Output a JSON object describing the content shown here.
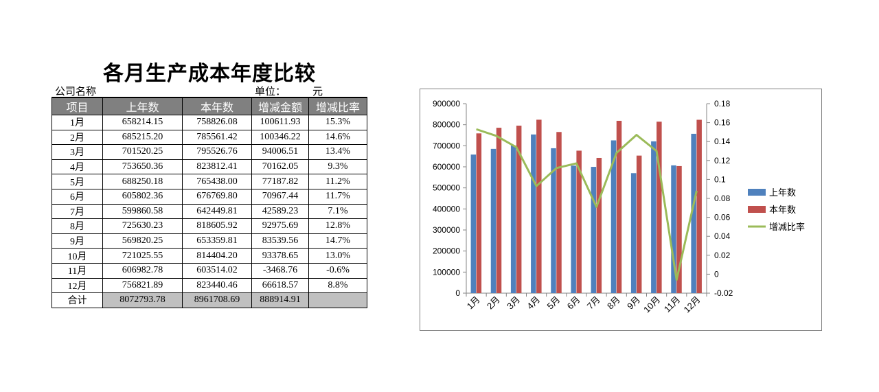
{
  "title": "各月生产成本年度比较",
  "meta": {
    "company_label": "公司名称",
    "unit_label": "单位：",
    "unit_value": "元"
  },
  "table": {
    "headers": [
      "项目",
      "上年数",
      "本年数",
      "增减金额",
      "增减比率"
    ],
    "rows": [
      [
        "1月",
        "658214.15",
        "758826.08",
        "100611.93",
        "15.3%"
      ],
      [
        "2月",
        "685215.20",
        "785561.42",
        "100346.22",
        "14.6%"
      ],
      [
        "3月",
        "701520.25",
        "795526.76",
        "94006.51",
        "13.4%"
      ],
      [
        "4月",
        "753650.36",
        "823812.41",
        "70162.05",
        "9.3%"
      ],
      [
        "5月",
        "688250.18",
        "765438.00",
        "77187.82",
        "11.2%"
      ],
      [
        "6月",
        "605802.36",
        "676769.80",
        "70967.44",
        "11.7%"
      ],
      [
        "7月",
        "599860.58",
        "642449.81",
        "42589.23",
        "7.1%"
      ],
      [
        "8月",
        "725630.23",
        "818605.92",
        "92975.69",
        "12.8%"
      ],
      [
        "9月",
        "569820.25",
        "653359.81",
        "83539.56",
        "14.7%"
      ],
      [
        "10月",
        "721025.55",
        "814404.20",
        "93378.65",
        "13.0%"
      ],
      [
        "11月",
        "606982.78",
        "603514.02",
        "-3468.76",
        "-0.6%"
      ],
      [
        "12月",
        "756821.89",
        "823440.46",
        "66618.57",
        "8.8%"
      ]
    ],
    "total": [
      "合计",
      "8072793.78",
      "8961708.69",
      "888914.91",
      ""
    ]
  },
  "chart_data": {
    "type": "bar",
    "categories": [
      "1月",
      "2月",
      "3月",
      "4月",
      "5月",
      "6月",
      "7月",
      "8月",
      "9月",
      "10月",
      "11月",
      "12月"
    ],
    "series": [
      {
        "name": "上年数",
        "kind": "bar",
        "axis": "left",
        "color": "#4f81bd",
        "values": [
          658214.15,
          685215.2,
          701520.25,
          753650.36,
          688250.18,
          605802.36,
          599860.58,
          725630.23,
          569820.25,
          721025.55,
          606982.78,
          756821.89
        ]
      },
      {
        "name": "本年数",
        "kind": "bar",
        "axis": "left",
        "color": "#c0504d",
        "values": [
          758826.08,
          785561.42,
          795526.76,
          823812.41,
          765438.0,
          676769.8,
          642449.81,
          818605.92,
          653359.81,
          814404.2,
          603514.02,
          823440.46
        ]
      },
      {
        "name": "增减比率",
        "kind": "line",
        "axis": "right",
        "color": "#9bbb59",
        "values": [
          0.153,
          0.146,
          0.134,
          0.093,
          0.112,
          0.117,
          0.071,
          0.128,
          0.147,
          0.13,
          -0.006,
          0.088
        ]
      }
    ],
    "ylim_left": [
      0,
      900000
    ],
    "yticks_left": [
      "0",
      "100000",
      "200000",
      "300000",
      "400000",
      "500000",
      "600000",
      "700000",
      "800000",
      "900000"
    ],
    "ylim_right": [
      -0.02,
      0.18
    ],
    "yticks_right": [
      "-0.02",
      "0",
      "0.02",
      "0.04",
      "0.06",
      "0.08",
      "0.1",
      "0.12",
      "0.14",
      "0.16",
      "0.18"
    ],
    "grid": false,
    "legend": "right"
  }
}
